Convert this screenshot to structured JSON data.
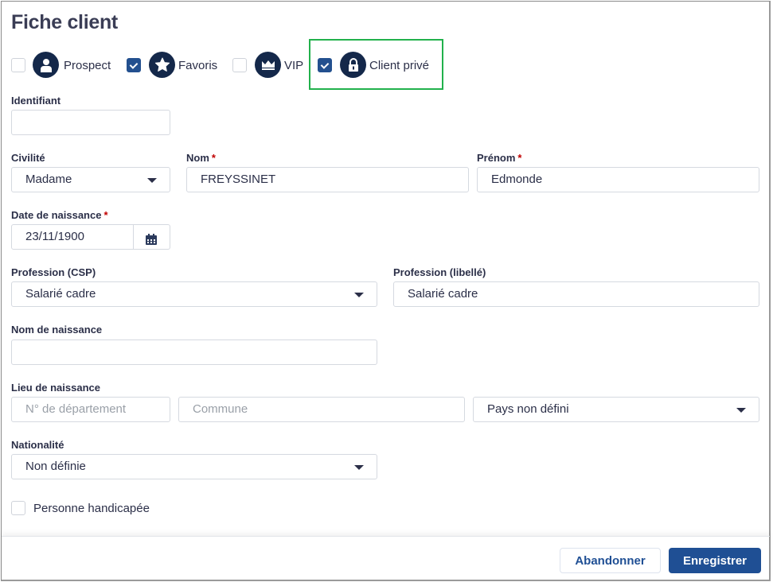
{
  "title": "Fiche client",
  "flags": [
    {
      "label": "Prospect",
      "checked": false,
      "icon": "user-icon"
    },
    {
      "label": "Favoris",
      "checked": true,
      "icon": "star-icon"
    },
    {
      "label": "VIP",
      "checked": false,
      "icon": "crown-icon"
    },
    {
      "label": "Client privé",
      "checked": true,
      "icon": "lock-icon"
    }
  ],
  "fields": {
    "identifiant": {
      "label": "Identifiant",
      "value": ""
    },
    "civilite": {
      "label": "Civilité",
      "value": "Madame"
    },
    "nom": {
      "label": "Nom",
      "value": "FREYSSINET",
      "required": "*"
    },
    "prenom": {
      "label": "Prénom",
      "value": "Edmonde",
      "required": "*"
    },
    "date_naissance": {
      "label": "Date de naissance",
      "value": "23/11/1900",
      "required": "*"
    },
    "profession_csp": {
      "label": "Profession (CSP)",
      "value": "Salarié cadre"
    },
    "profession_libelle": {
      "label": "Profession (libellé)",
      "value": "Salarié cadre"
    },
    "nom_naissance": {
      "label": "Nom de naissance",
      "value": ""
    },
    "lieu_naissance": {
      "label": "Lieu de naissance",
      "departement_placeholder": "N° de département",
      "commune_placeholder": "Commune",
      "pays": "Pays non défini"
    },
    "nationalite": {
      "label": "Nationalité",
      "value": "Non définie"
    },
    "handicap": {
      "label": "Personne handicapée",
      "checked": false
    }
  },
  "footer": {
    "cancel": "Abandonner",
    "save": "Enregistrer"
  },
  "colors": {
    "primary": "#1f4f94",
    "highlight": "#22b14c",
    "badge": "#14284a"
  }
}
